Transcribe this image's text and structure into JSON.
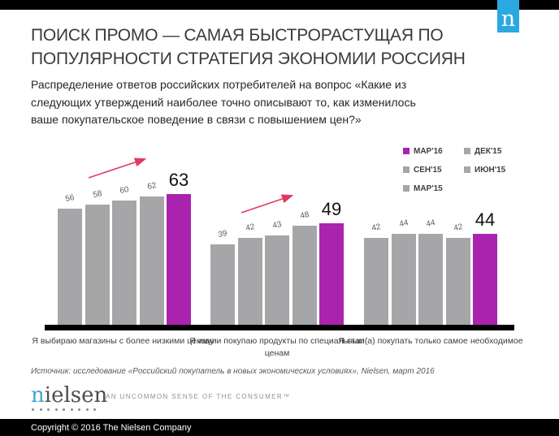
{
  "header": {
    "badge_letter": "n",
    "title_lines": [
      "ПОИСК ПРОМО — САМАЯ БЫСТРОРАСТУЩАЯ ПО",
      "ПОПУЛЯРНОСТИ СТРАТЕГИЯ ЭКОНОМИИ РОССИЯН"
    ],
    "subtitle_lines": [
      "Распределение ответов российских потребителей на вопрос «Какие из",
      "следующих утверждений наиболее точно описывают то, как изменилось",
      "ваше покупательское поведение в связи с повышением цен?»"
    ]
  },
  "legend": {
    "items": [
      {
        "label": "МАР'16",
        "color": "#aa23af"
      },
      {
        "label": "ДЕК'15",
        "color": "#a6a6a8"
      },
      {
        "label": "СЕН'15",
        "color": "#a6a6a8"
      },
      {
        "label": "ИЮН'15",
        "color": "#a6a6a8"
      },
      {
        "label": "МАР'15",
        "color": "#a6a6a8"
      }
    ]
  },
  "chart_data": {
    "type": "bar",
    "title": "",
    "xlabel": "",
    "ylabel": "",
    "ylim": [
      0,
      70
    ],
    "grid": false,
    "legend_position": "top-right",
    "categories": [
      "Я выбираю магазины с более низкими ценами",
      "Я ищу и покупаю продукты по специальным ценам",
      "Я стал(а) покупать только самое необходимое"
    ],
    "series": [
      {
        "name": "МАР'15",
        "values": [
          56,
          39,
          42
        ],
        "color": "#a6a6a8",
        "highlight": false
      },
      {
        "name": "ИЮН'15",
        "values": [
          58,
          42,
          44
        ],
        "color": "#a6a6a8",
        "highlight": false
      },
      {
        "name": "СЕН'15",
        "values": [
          60,
          43,
          44
        ],
        "color": "#a6a6a8",
        "highlight": false
      },
      {
        "name": "ДЕК'15",
        "values": [
          62,
          48,
          42
        ],
        "color": "#a6a6a8",
        "highlight": false
      },
      {
        "name": "МАР'16",
        "values": [
          63,
          49,
          44
        ],
        "color": "#aa23af",
        "highlight": true
      }
    ],
    "annotations": [
      {
        "type": "trend-up-arrow",
        "group": 1
      },
      {
        "type": "trend-up-arrow",
        "group": 2
      }
    ]
  },
  "source": "Источник: исследование «Российский покупатель в новых экономических условиях», Nielsen, март 2016",
  "branding": {
    "logo_first_letter": "n",
    "logo_rest": "ielsen",
    "tagline": "AN UNCOMMON SENSE OF THE CONSUMER™"
  },
  "footer": {
    "copyright": "Copyright © 2016 The Nielsen Company"
  },
  "colors": {
    "accent_magenta": "#aa23af",
    "bar_gray": "#a6a6a8",
    "nielsen_badge_blue": "#2aa9e0",
    "nielsen_logo_blue": "#3ea4d9",
    "trend_arrow_pink": "#e23a5f",
    "bar_black": "#000000"
  }
}
